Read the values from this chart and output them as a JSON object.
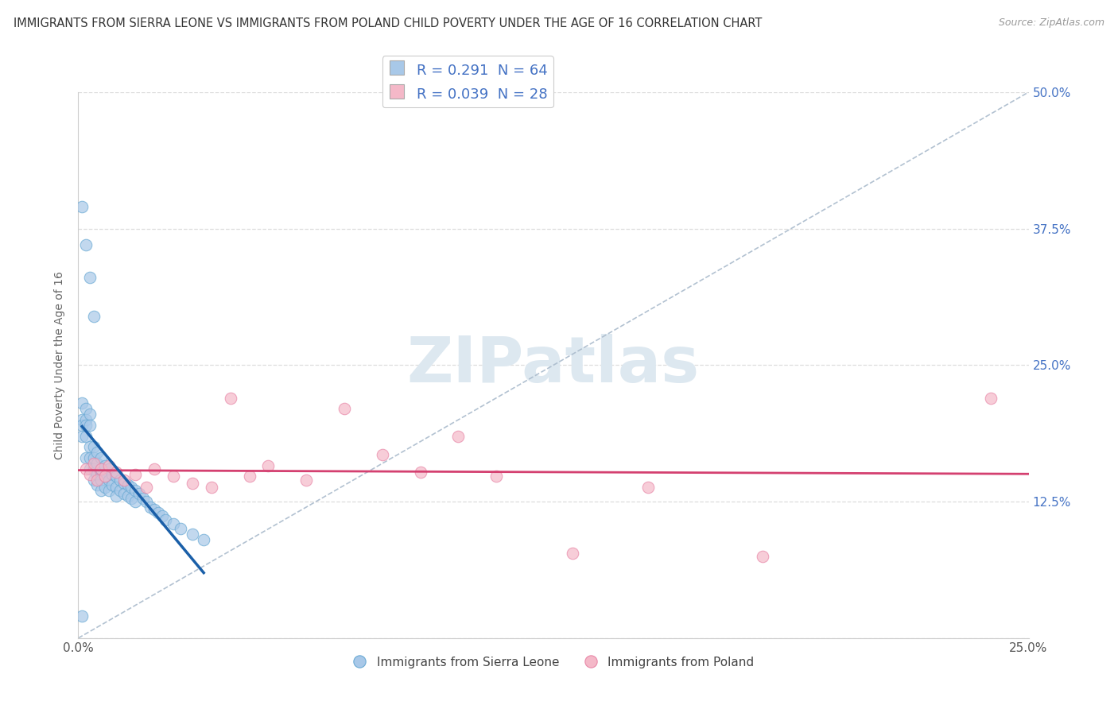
{
  "title": "IMMIGRANTS FROM SIERRA LEONE VS IMMIGRANTS FROM POLAND CHILD POVERTY UNDER THE AGE OF 16 CORRELATION CHART",
  "source": "Source: ZipAtlas.com",
  "ylabel": "Child Poverty Under the Age of 16",
  "xlabel_blue": "Immigrants from Sierra Leone",
  "xlabel_pink": "Immigrants from Poland",
  "xlim": [
    0,
    0.25
  ],
  "ylim": [
    0,
    0.5
  ],
  "ytick_vals": [
    0.0,
    0.125,
    0.25,
    0.375,
    0.5
  ],
  "xtick_vals": [
    0.0,
    0.025,
    0.05,
    0.075,
    0.1,
    0.125,
    0.15,
    0.175,
    0.2,
    0.225,
    0.25
  ],
  "R_blue": 0.291,
  "N_blue": 64,
  "R_pink": 0.039,
  "N_pink": 28,
  "blue_color": "#a8c8e8",
  "blue_edge": "#6aaad4",
  "pink_color": "#f4b8c8",
  "pink_edge": "#e888a8",
  "trend_blue": "#1a5fa8",
  "trend_pink": "#d44070",
  "dash_color": "#aabbcc",
  "watermark_color": "#dde8f0",
  "right_label_color": "#4472c4",
  "legend_text_color": "#4472c4",
  "title_color": "#333333",
  "source_color": "#999999",
  "ylabel_color": "#666666",
  "grid_color": "#dddddd",
  "sierra_leone_x": [
    0.001,
    0.001,
    0.001,
    0.001,
    0.002,
    0.002,
    0.002,
    0.002,
    0.002,
    0.003,
    0.003,
    0.003,
    0.003,
    0.003,
    0.004,
    0.004,
    0.004,
    0.004,
    0.005,
    0.005,
    0.005,
    0.005,
    0.006,
    0.006,
    0.006,
    0.006,
    0.007,
    0.007,
    0.007,
    0.008,
    0.008,
    0.008,
    0.009,
    0.009,
    0.01,
    0.01,
    0.01,
    0.011,
    0.011,
    0.012,
    0.012,
    0.013,
    0.013,
    0.014,
    0.014,
    0.015,
    0.015,
    0.016,
    0.017,
    0.018,
    0.019,
    0.02,
    0.021,
    0.022,
    0.023,
    0.025,
    0.027,
    0.03,
    0.033,
    0.001,
    0.002,
    0.003,
    0.004,
    0.001
  ],
  "sierra_leone_y": [
    0.2,
    0.215,
    0.195,
    0.185,
    0.21,
    0.2,
    0.195,
    0.185,
    0.165,
    0.205,
    0.175,
    0.195,
    0.165,
    0.155,
    0.175,
    0.165,
    0.155,
    0.145,
    0.17,
    0.16,
    0.15,
    0.14,
    0.165,
    0.155,
    0.145,
    0.135,
    0.158,
    0.148,
    0.138,
    0.155,
    0.145,
    0.135,
    0.15,
    0.14,
    0.148,
    0.138,
    0.13,
    0.145,
    0.135,
    0.142,
    0.132,
    0.14,
    0.13,
    0.138,
    0.128,
    0.135,
    0.125,
    0.132,
    0.128,
    0.125,
    0.12,
    0.118,
    0.115,
    0.112,
    0.108,
    0.105,
    0.1,
    0.095,
    0.09,
    0.395,
    0.36,
    0.33,
    0.295,
    0.02
  ],
  "poland_x": [
    0.002,
    0.003,
    0.004,
    0.005,
    0.006,
    0.007,
    0.008,
    0.01,
    0.012,
    0.015,
    0.018,
    0.02,
    0.025,
    0.03,
    0.035,
    0.04,
    0.045,
    0.05,
    0.06,
    0.07,
    0.08,
    0.09,
    0.1,
    0.11,
    0.13,
    0.15,
    0.18,
    0.24
  ],
  "poland_y": [
    0.155,
    0.15,
    0.16,
    0.145,
    0.155,
    0.148,
    0.158,
    0.152,
    0.145,
    0.15,
    0.138,
    0.155,
    0.148,
    0.142,
    0.138,
    0.22,
    0.148,
    0.158,
    0.145,
    0.21,
    0.168,
    0.152,
    0.185,
    0.148,
    0.078,
    0.138,
    0.075,
    0.22
  ]
}
